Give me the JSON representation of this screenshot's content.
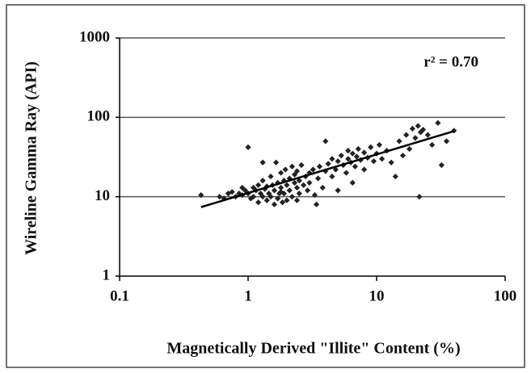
{
  "chart_data": {
    "type": "scatter",
    "xlabel": "Magnetically Derived \"Illite\" Content (%)",
    "ylabel": "Wireline Gamma Ray (API)",
    "annotation": "r² = 0.70",
    "xscale": "log",
    "yscale": "log",
    "xlim": [
      0.1,
      100
    ],
    "ylim": [
      1,
      1000
    ],
    "xticks": [
      0.1,
      1,
      10,
      100
    ],
    "yticks": [
      1,
      10,
      100,
      1000
    ],
    "grid": true,
    "series": [
      {
        "color": "#222222",
        "x": [
          0.43,
          0.6,
          0.65,
          0.7,
          0.75,
          0.8,
          0.85,
          0.9,
          0.95,
          1.0,
          1.0,
          1.05,
          1.1,
          1.1,
          1.15,
          1.2,
          1.2,
          1.25,
          1.3,
          1.3,
          1.35,
          1.4,
          1.4,
          1.45,
          1.5,
          1.5,
          1.55,
          1.6,
          1.6,
          1.65,
          1.7,
          1.7,
          1.75,
          1.8,
          1.8,
          1.85,
          1.9,
          1.9,
          1.95,
          2.0,
          2.0,
          2.1,
          2.1,
          2.2,
          2.2,
          2.3,
          2.3,
          2.4,
          2.4,
          2.5,
          2.5,
          2.6,
          2.7,
          2.8,
          2.9,
          3.0,
          3.0,
          3.2,
          3.3,
          3.5,
          3.6,
          3.8,
          4.0,
          4.0,
          4.2,
          4.5,
          4.5,
          4.8,
          5.0,
          5.0,
          5.3,
          5.5,
          5.8,
          6.0,
          6.0,
          6.3,
          6.5,
          6.8,
          7.0,
          7.2,
          7.5,
          8.0,
          8.0,
          8.5,
          9.0,
          9.5,
          10,
          10.5,
          11,
          12,
          13,
          14,
          15,
          16,
          17,
          18,
          19,
          20,
          21,
          21.5,
          22,
          23,
          25,
          27,
          30,
          32,
          35,
          40,
          1.3,
          2.4,
          3.4,
          6.5,
          1.8,
          0.9
        ],
        "values": [
          10.5,
          10,
          9.5,
          11,
          11.5,
          10,
          11,
          10.5,
          12,
          11,
          42,
          9.5,
          13,
          10,
          12,
          8.5,
          14,
          11,
          10,
          16,
          12.5,
          9,
          13.5,
          11,
          18,
          10,
          14,
          8,
          12,
          27,
          15,
          9.5,
          11,
          20,
          13,
          8.5,
          16,
          11,
          22,
          14,
          9,
          17,
          12,
          24,
          10,
          15,
          19,
          13,
          21,
          11,
          16,
          25,
          14,
          18,
          12,
          20,
          15,
          22,
          10.5,
          17,
          24,
          13,
          21,
          50,
          26,
          18,
          30,
          22,
          28,
          12,
          33,
          25,
          20,
          30,
          38,
          27,
          35,
          24,
          32,
          40,
          29,
          36,
          22,
          31,
          42,
          28,
          35,
          45,
          30,
          38,
          27,
          18,
          50,
          33,
          60,
          40,
          72,
          55,
          78,
          10,
          65,
          70,
          60,
          45,
          85,
          25,
          50,
          68,
          27,
          9,
          8,
          15,
          11.5,
          13
        ]
      }
    ],
    "trendline": {
      "x": [
        0.43,
        40
      ],
      "y": [
        7.4,
        67
      ]
    }
  }
}
